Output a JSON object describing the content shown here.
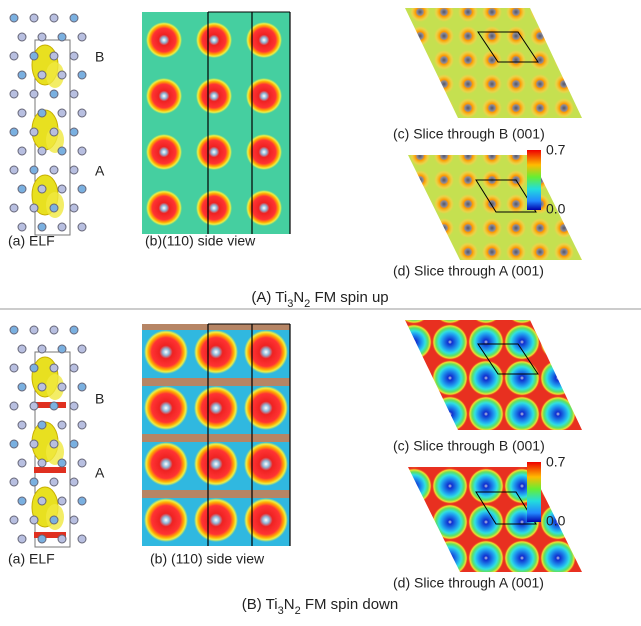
{
  "panels": [
    {
      "labels": {
        "upper": "B",
        "lower": "A"
      },
      "a": "(a) ELF",
      "b": "(b)(110) side view",
      "c": "(c) Slice through B (001)",
      "d": "(d) Slice through A (001)",
      "colorbar": {
        "max": "0.7",
        "min": "0.0"
      },
      "caption": [
        "(A) Ti",
        "3",
        "N",
        "2",
        " FM spin up"
      ]
    },
    {
      "labels": {
        "upper": "B",
        "lower": "A"
      },
      "a": "(a) ELF",
      "b": "(b) (110) side view",
      "c": "(c) Slice through B (001)",
      "d": "(d) Slice through A (001)",
      "colorbar": {
        "max": "0.7",
        "min": "0.0"
      },
      "caption": [
        "(B) Ti",
        "3",
        "N",
        "2",
        " FM spin down"
      ]
    }
  ]
}
